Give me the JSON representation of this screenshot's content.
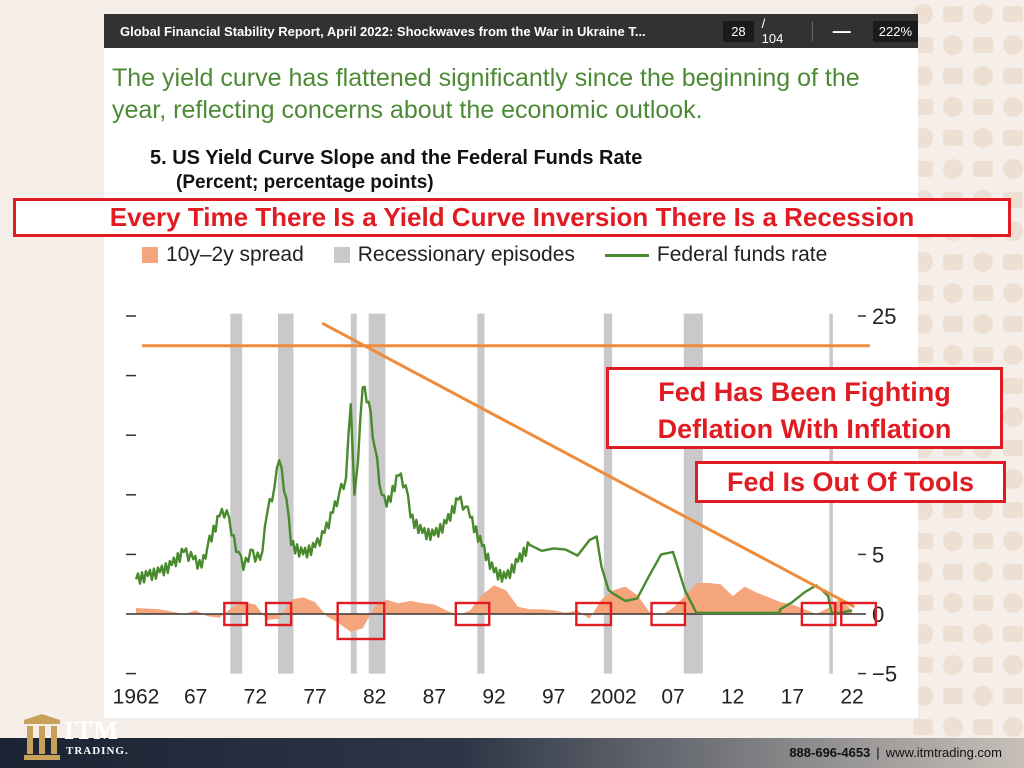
{
  "toolbar": {
    "doc_title": "Global Financial Stability Report, April 2022: Shockwaves from the War in Ukraine T...",
    "page_current": "28",
    "page_total": "/ 104",
    "zoom_out_glyph": "—",
    "zoom_level": "222%"
  },
  "headline": "The yield curve has flattened significantly since the beginning of the year, reflecting concerns about the economic outlook.",
  "figure": {
    "title": "5. US Yield Curve Slope and the Federal Funds Rate",
    "subtitle": "(Percent; percentage points)"
  },
  "annotations": {
    "banner": "Every Time There Is a Yield Curve Inversion There Is a Recession",
    "box1_line1": "Fed Has Been Fighting",
    "box1_line2": "Deflation With Inflation",
    "box2": "Fed Is Out Of Tools"
  },
  "legend": {
    "spread": "10y–2y spread",
    "recession": "Recessionary episodes",
    "fedfunds": "Federal funds rate"
  },
  "colors": {
    "spread": "#f4a57c",
    "recession": "#c9c9cb",
    "fedfunds": "#4a8a2e",
    "annotation_red": "#e11b22",
    "trend_orange": "#ef8c3c",
    "headline_green": "#4d8a35"
  },
  "footer": {
    "phone": "888-696-4653",
    "separator": "|",
    "site": "www.itmtrading.com",
    "logo_word": "ITM",
    "logo_sub": "TRADING."
  },
  "chart_data": {
    "type": "line",
    "x_tick_labels": [
      "1962",
      "67",
      "72",
      "77",
      "82",
      "87",
      "92",
      "97",
      "2002",
      "07",
      "12",
      "17",
      "22"
    ],
    "x_tick_years": [
      1962,
      1967,
      1972,
      1977,
      1982,
      1987,
      1992,
      1997,
      2002,
      2007,
      2012,
      2017,
      2022
    ],
    "xlim": [
      1962,
      2023
    ],
    "right_y_ticks": [
      "25",
      "5",
      "0",
      "−5"
    ],
    "right_y_tick_values": [
      25,
      5,
      0,
      -5
    ],
    "ylim": [
      -5,
      25
    ],
    "recessions": [
      [
        1969.9,
        1970.9
      ],
      [
        1973.9,
        1975.2
      ],
      [
        1980.0,
        1980.5
      ],
      [
        1981.5,
        1982.9
      ],
      [
        1990.6,
        1991.2
      ],
      [
        2001.2,
        2001.9
      ],
      [
        2007.9,
        2009.5
      ],
      [
        2020.1,
        2020.4
      ]
    ],
    "fedfunds": {
      "name": "Federal funds rate",
      "x": [
        1962,
        1963,
        1964,
        1965,
        1966,
        1966.8,
        1967.5,
        1968,
        1969,
        1969.6,
        1970,
        1970.6,
        1971,
        1971.6,
        1972,
        1972.6,
        1973,
        1973.6,
        1974,
        1974.6,
        1975,
        1976,
        1977,
        1977.8,
        1978.5,
        1979,
        1979.6,
        1980,
        1980.3,
        1980.6,
        1981,
        1981.5,
        1982,
        1982.6,
        1983,
        1984,
        1984.6,
        1985,
        1986,
        1987,
        1988,
        1989,
        1989.6,
        1990,
        1991,
        1992,
        1993,
        1994,
        1995,
        1996,
        1997,
        1998,
        1999,
        2000,
        2000.6,
        2001,
        2001.6,
        2002,
        2003,
        2004,
        2005,
        2006,
        2007,
        2008,
        2008.9,
        2009,
        2015.9,
        2016,
        2017,
        2018,
        2019,
        2019.5,
        2020,
        2020.3,
        2021,
        2022
      ],
      "y": [
        2.9,
        3.2,
        3.5,
        4.1,
        5.2,
        4.6,
        3.9,
        5.7,
        8.2,
        8.7,
        6.6,
        5.2,
        3.7,
        5.4,
        4.4,
        5.3,
        8.5,
        10.6,
        12.9,
        9.7,
        5.8,
        5.0,
        5.6,
        6.8,
        8.5,
        10.0,
        11.4,
        17.6,
        10.0,
        12.8,
        19.0,
        17.8,
        14.0,
        10.0,
        9.0,
        11.6,
        10.8,
        8.1,
        6.8,
        6.6,
        7.6,
        9.6,
        9.0,
        8.1,
        5.7,
        3.5,
        3.0,
        4.4,
        5.8,
        5.3,
        5.5,
        5.4,
        4.9,
        6.2,
        6.5,
        4.0,
        2.0,
        1.7,
        1.1,
        1.3,
        3.2,
        5.0,
        5.2,
        2.0,
        0.2,
        0.1,
        0.1,
        0.4,
        1.0,
        1.8,
        2.4,
        2.0,
        1.5,
        0.1,
        0.1,
        0.3
      ]
    },
    "spread": {
      "name": "10y–2y spread",
      "x": [
        1962,
        1964,
        1966,
        1967,
        1968,
        1969,
        1970,
        1971,
        1972,
        1973,
        1974,
        1975,
        1976,
        1977,
        1978,
        1979,
        1980,
        1981,
        1982,
        1983,
        1984,
        1985,
        1986,
        1987,
        1988,
        1989,
        1990,
        1991,
        1992,
        1993,
        1994,
        1995,
        1996,
        1997,
        1998,
        1999,
        2000,
        2001,
        2002,
        2003,
        2004,
        2005,
        2006,
        2007,
        2008,
        2009,
        2010,
        2011,
        2012,
        2013,
        2014,
        2015,
        2016,
        2017,
        2018,
        2019,
        2020,
        2021,
        2022
      ],
      "y": [
        0.5,
        0.4,
        0.0,
        0.3,
        -0.2,
        -0.3,
        0.5,
        1.0,
        0.8,
        -0.5,
        -0.4,
        1.2,
        1.4,
        1.0,
        -0.2,
        -0.8,
        -1.5,
        -1.2,
        0.6,
        1.2,
        0.9,
        1.1,
        0.9,
        0.8,
        0.3,
        -0.1,
        0.3,
        1.6,
        2.4,
        2.0,
        0.6,
        0.4,
        0.4,
        0.3,
        0.1,
        0.3,
        -0.4,
        1.2,
        2.0,
        2.3,
        1.6,
        0.2,
        -0.1,
        0.5,
        1.5,
        2.6,
        2.6,
        2.5,
        1.5,
        2.3,
        1.8,
        1.4,
        1.0,
        0.8,
        0.4,
        0.0,
        0.5,
        1.3,
        0.3
      ]
    }
  }
}
